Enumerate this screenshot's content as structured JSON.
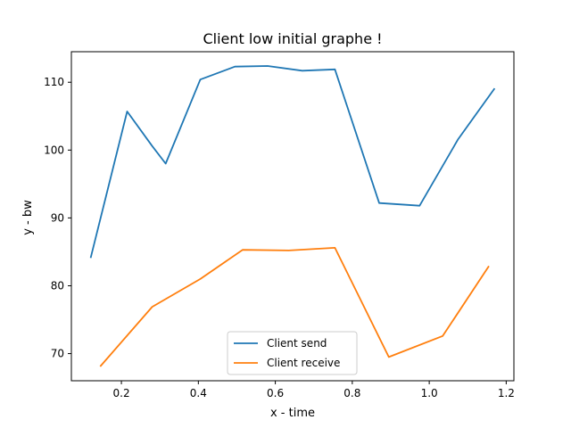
{
  "chart_data": {
    "type": "line",
    "title": "Client low initial graphe !",
    "xlabel": "x - time",
    "ylabel": "y - bw",
    "xlim": [
      0.07,
      1.22
    ],
    "ylim": [
      66,
      114.5
    ],
    "xticks": [
      0.2,
      0.4,
      0.6,
      0.8,
      1.0,
      1.2
    ],
    "xtick_labels": [
      "0.2",
      "0.4",
      "0.6",
      "0.8",
      "1.0",
      "1.2"
    ],
    "yticks": [
      70,
      80,
      90,
      100,
      110
    ],
    "ytick_labels": [
      "70",
      "80",
      "90",
      "100",
      "110"
    ],
    "grid": false,
    "legend_position": "lower-center",
    "series": [
      {
        "name": "Client send",
        "color": "#1f77b4",
        "x": [
          0.12,
          0.215,
          0.28,
          0.315,
          0.405,
          0.495,
          0.58,
          0.67,
          0.755,
          0.87,
          0.975,
          1.075,
          1.17
        ],
        "y": [
          84.1,
          105.7,
          100.6,
          98.0,
          110.4,
          112.3,
          112.4,
          111.7,
          111.9,
          92.2,
          91.8,
          101.6,
          109.1
        ]
      },
      {
        "name": "Client receive",
        "color": "#ff7f0e",
        "x": [
          0.145,
          0.28,
          0.405,
          0.515,
          0.635,
          0.755,
          0.895,
          1.035,
          1.155
        ],
        "y": [
          68.1,
          76.9,
          81.0,
          85.3,
          85.2,
          85.6,
          69.5,
          72.6,
          82.9
        ]
      }
    ]
  }
}
